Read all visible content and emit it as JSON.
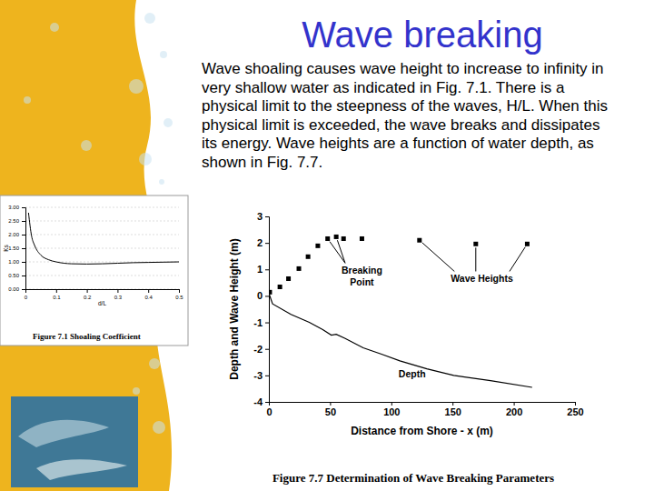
{
  "slide": {
    "title": "Wave breaking",
    "body": "Wave shoaling causes wave height to increase to infinity in very shallow water as indicated in Fig. 7.1. There is a physical limit to the steepness of the waves, H/L. When this physical limit is exceeded, the wave breaks and dissipates its energy. Wave heights are a function of water depth, as shown in Fig. 7.7."
  },
  "chart_data": [
    {
      "type": "line",
      "title": "Figure 7.1 Shoaling Coefficient",
      "x_label": "d/L",
      "y_label": "Ks",
      "xlim": [
        0,
        0.5
      ],
      "xticks": [
        0,
        0.1,
        0.2,
        0.3,
        0.4,
        0.5
      ],
      "ylim": [
        0,
        3
      ],
      "yticks": [
        {
          "value": 0,
          "label": "0.00"
        },
        {
          "value": 0.5,
          "label": "0.50"
        },
        {
          "value": 1,
          "label": "1.00"
        },
        {
          "value": 1.5,
          "label": "1.50"
        },
        {
          "value": 2,
          "label": "2.00"
        },
        {
          "value": 2.5,
          "label": "2.50"
        },
        {
          "value": 3,
          "label": "3.00"
        }
      ],
      "grid": true,
      "series": [
        {
          "type": "line",
          "color": "#000000",
          "line_style": "solid",
          "x": [
            0.01,
            0.02,
            0.03,
            0.05,
            0.075,
            0.1,
            0.15,
            0.2,
            0.25,
            0.3,
            0.35,
            0.4,
            0.45,
            0.5
          ],
          "values": [
            2.8,
            1.95,
            1.6,
            1.25,
            1.08,
            1.0,
            0.93,
            0.92,
            0.93,
            0.95,
            0.97,
            0.98,
            0.99,
            1.0
          ]
        }
      ]
    },
    {
      "type": "scatter",
      "title": "Figure 7.7 Determination of Wave Breaking Parameters",
      "x_label": "Distance from Shore - x (m)",
      "y_label": "Depth and Wave Height (m)",
      "xlim": [
        0,
        250
      ],
      "xticks": [
        0,
        50,
        100,
        150,
        200,
        250
      ],
      "ylim": [
        -4,
        3
      ],
      "yticks": [
        -4,
        -3,
        -2,
        -1,
        0,
        1,
        2,
        3
      ],
      "grid": false,
      "series": [
        {
          "type": "scatter",
          "marker": "square",
          "color": "#000000",
          "x": [
            0.7,
            9,
            16,
            24.5,
            32,
            40,
            48,
            55,
            61,
            76,
            123,
            169,
            211
          ],
          "values": [
            0.14,
            0.34,
            0.65,
            1.03,
            1.48,
            1.89,
            2.16,
            2.23,
            2.16,
            2.16,
            2.1,
            1.96,
            1.96
          ]
        },
        {
          "type": "line",
          "color": "#000000",
          "line_style": "solid",
          "x": [
            0,
            3,
            18,
            33,
            44,
            51,
            55,
            62,
            77,
            92,
            107,
            129,
            151,
            181,
            215
          ],
          "values": [
            0.1,
            -0.3,
            -0.7,
            -1.0,
            -1.27,
            -1.48,
            -1.45,
            -1.6,
            -1.96,
            -2.2,
            -2.45,
            -2.75,
            -3.0,
            -3.2,
            -3.45
          ]
        }
      ],
      "annotations": [
        {
          "text": "Breaking Point",
          "x": 76,
          "y": 0.75,
          "arrows": [
            {
              "x": 48,
              "y": 2.16
            },
            {
              "x": 55,
              "y": 2.23
            }
          ]
        },
        {
          "text": "Wave Heights",
          "x": 174,
          "y": 0.65,
          "arrows": [
            {
              "x": 123,
              "y": 2.1
            },
            {
              "x": 169,
              "y": 1.96
            },
            {
              "x": 211,
              "y": 1.96
            }
          ]
        },
        {
          "text": "Depth",
          "x": 117,
          "y": -2.95,
          "arrows": []
        }
      ]
    }
  ]
}
